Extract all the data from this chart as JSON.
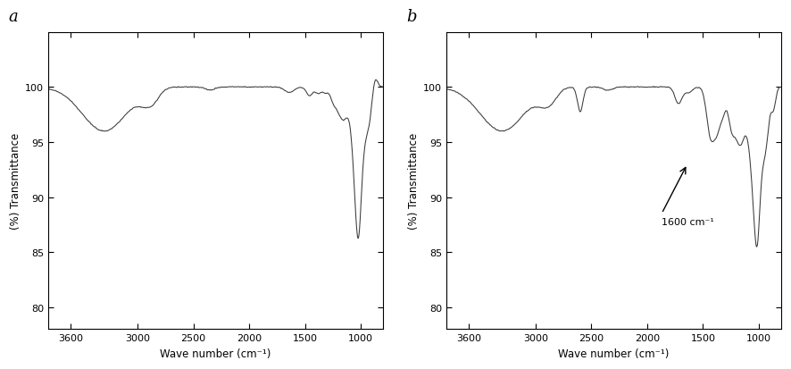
{
  "title_a": "a",
  "title_b": "b",
  "xlabel": "Wave number (cm⁻¹)",
  "ylabel": "(%) Transmittance",
  "xlim": [
    3800,
    800
  ],
  "ylim": [
    78,
    105
  ],
  "yticks": [
    80,
    85,
    90,
    95,
    100
  ],
  "xticks": [
    3600,
    3000,
    2500,
    2000,
    1500,
    1000
  ],
  "annotation_text": "1600 cm⁻¹",
  "line_color": "#3a3a3a",
  "background_color": "#ffffff"
}
